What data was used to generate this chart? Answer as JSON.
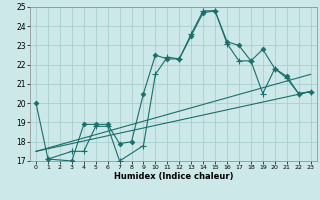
{
  "title": "",
  "xlabel": "Humidex (Indice chaleur)",
  "ylabel": "",
  "bg_color": "#cce8e8",
  "line_color": "#1a6e6a",
  "grid_color": "#aacece",
  "xlim": [
    -0.5,
    23.5
  ],
  "ylim": [
    17,
    25
  ],
  "xticks": [
    0,
    1,
    2,
    3,
    4,
    5,
    6,
    7,
    8,
    9,
    10,
    11,
    12,
    13,
    14,
    15,
    16,
    17,
    18,
    19,
    20,
    21,
    22,
    23
  ],
  "yticks": [
    17,
    18,
    19,
    20,
    21,
    22,
    23,
    24,
    25
  ],
  "lines": [
    {
      "x": [
        0,
        1,
        3,
        4,
        5,
        6,
        7,
        8,
        9,
        10,
        11,
        12,
        13,
        14,
        15,
        16,
        17,
        18,
        19,
        20,
        21,
        22,
        23
      ],
      "y": [
        20.0,
        17.1,
        17.0,
        18.9,
        18.9,
        18.9,
        17.9,
        18.0,
        20.5,
        22.5,
        22.3,
        22.3,
        23.5,
        24.7,
        24.8,
        23.2,
        23.0,
        22.2,
        22.8,
        21.8,
        21.4,
        20.5,
        20.6
      ],
      "marker": "D",
      "markersize": 2.5,
      "lw": 0.8
    },
    {
      "x": [
        1,
        3,
        4,
        5,
        6,
        7,
        9,
        10,
        11,
        12,
        13,
        14,
        15,
        16,
        17,
        18,
        19,
        20,
        21,
        22,
        23
      ],
      "y": [
        17.1,
        17.5,
        17.5,
        18.8,
        18.8,
        17.0,
        17.8,
        21.5,
        22.4,
        22.3,
        23.6,
        24.8,
        24.8,
        23.1,
        22.2,
        22.2,
        20.5,
        21.8,
        21.3,
        20.5,
        20.6
      ],
      "marker": "+",
      "markersize": 4,
      "lw": 0.8
    },
    {
      "x": [
        0,
        23
      ],
      "y": [
        17.5,
        20.6
      ],
      "marker": null,
      "markersize": 0,
      "lw": 0.8
    },
    {
      "x": [
        0,
        23
      ],
      "y": [
        17.5,
        21.5
      ],
      "marker": null,
      "markersize": 0,
      "lw": 0.8
    }
  ]
}
